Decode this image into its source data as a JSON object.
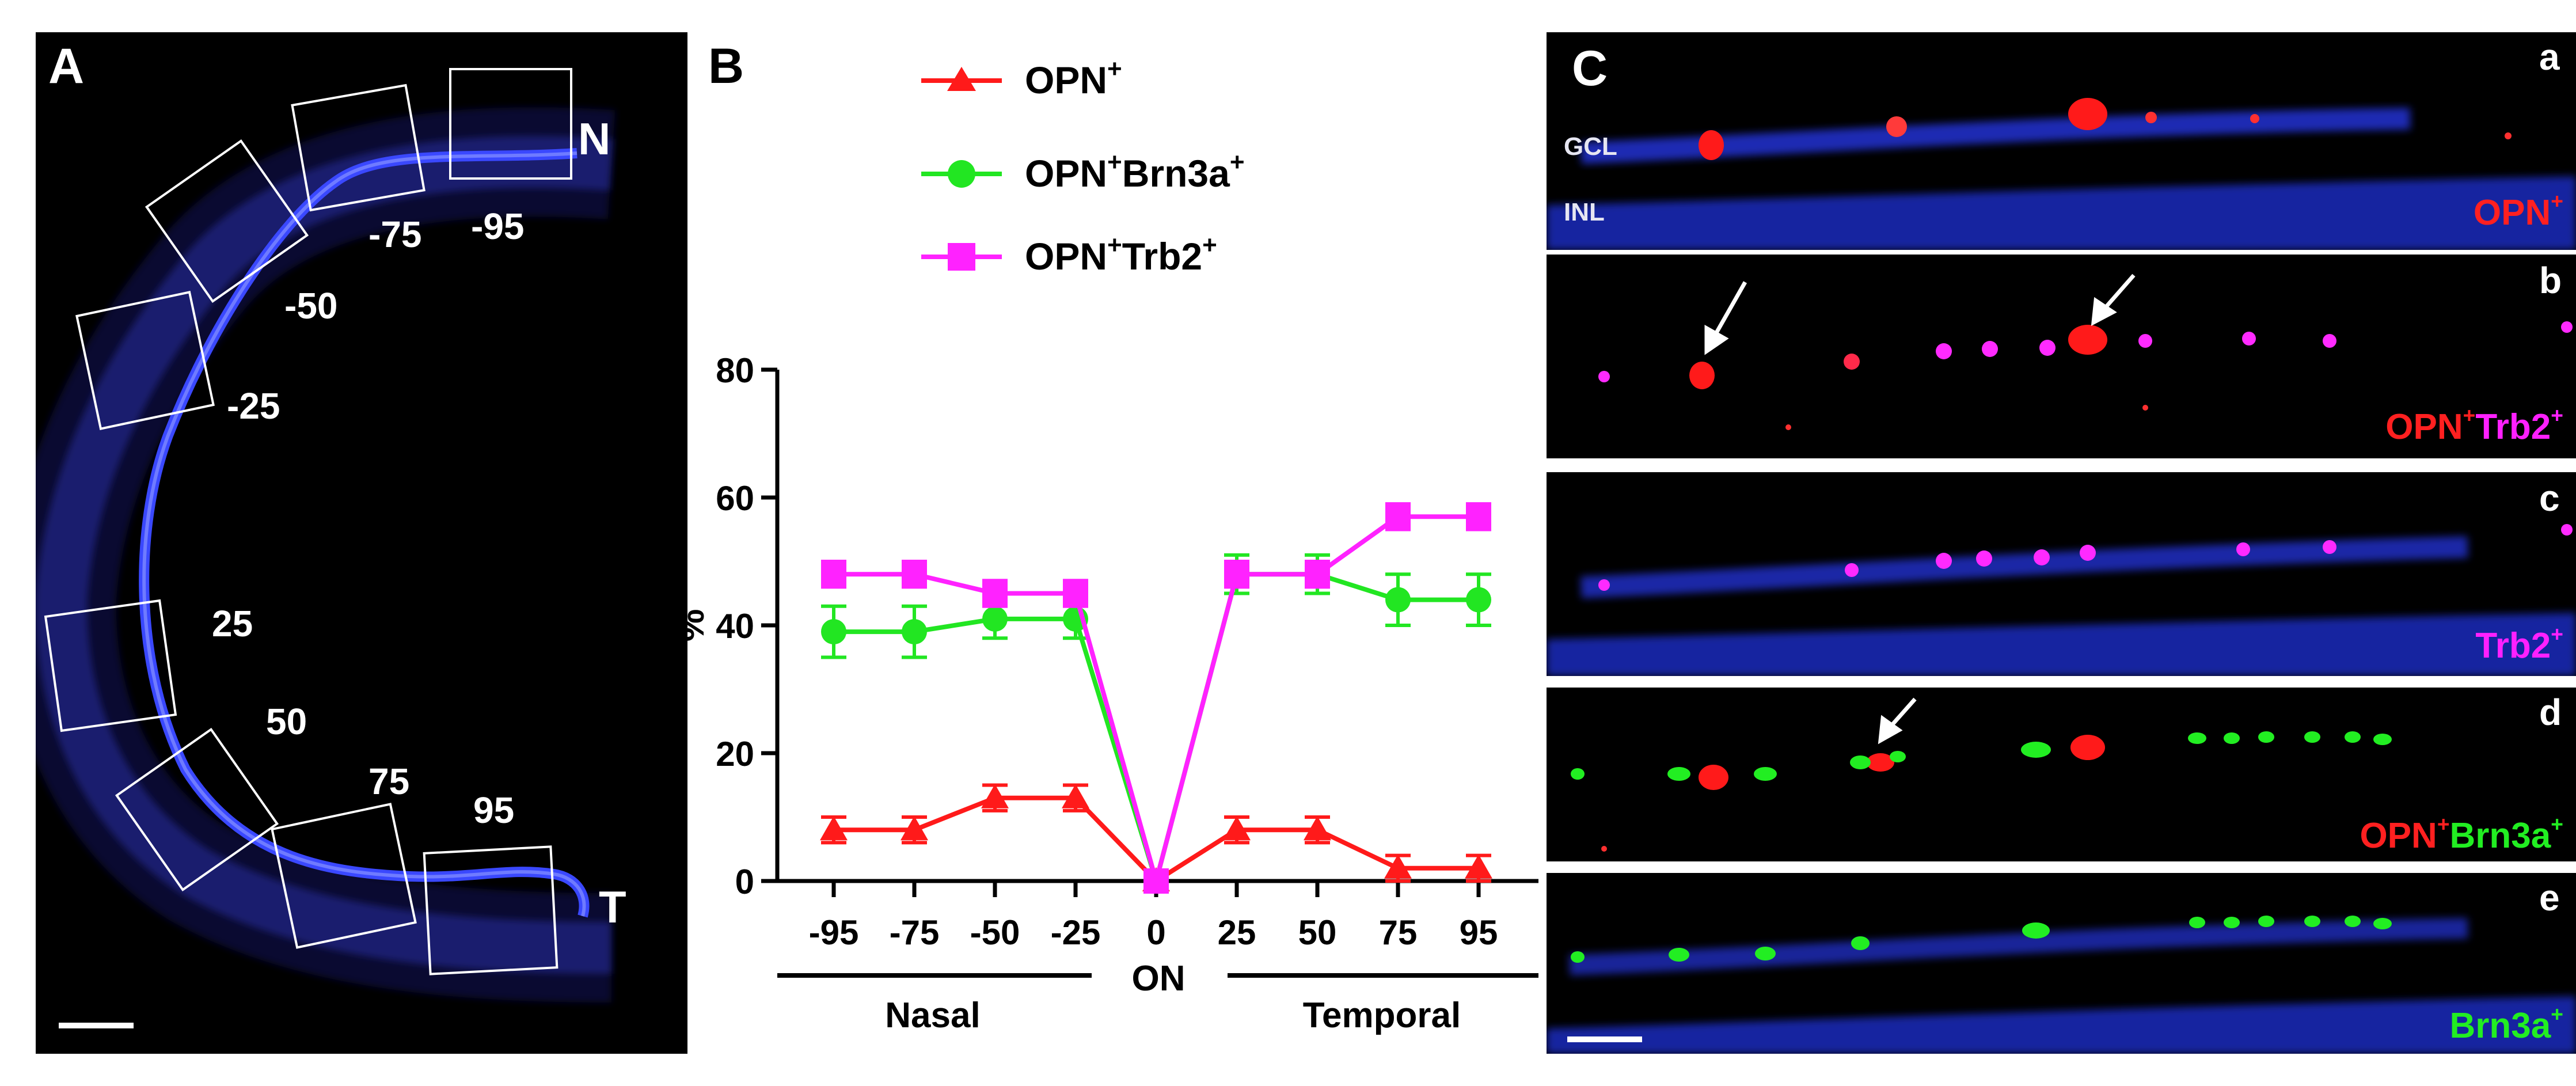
{
  "panel_a": {
    "letter": "A",
    "box_labels": [
      "-95",
      "-75",
      "-50",
      "-25",
      "25",
      "50",
      "75",
      "95"
    ],
    "nasal_end": "N",
    "temporal_end": "T"
  },
  "panel_b": {
    "letter": "B",
    "legend": [
      {
        "base": "OPN",
        "sup": "+",
        "rest": "",
        "rest_sup": ""
      },
      {
        "base": "OPN",
        "sup": "+",
        "rest": "Brn3a",
        "rest_sup": "+"
      },
      {
        "base": "OPN",
        "sup": "+",
        "rest": "Trb2",
        "rest_sup": "+"
      }
    ],
    "group_labels": [
      "Nasal",
      "ON",
      "Temporal"
    ]
  },
  "chart_data": {
    "type": "line",
    "categories": [
      "-95",
      "-75",
      "-50",
      "-25",
      "0",
      "25",
      "50",
      "75",
      "95"
    ],
    "ylabel": "%",
    "xlabel": "",
    "ylim": [
      0,
      80
    ],
    "yticks": [
      "0",
      "20",
      "40",
      "60",
      "80"
    ],
    "series": [
      {
        "name": "OPN+",
        "color": "#ff1a1a",
        "marker": "triangle",
        "values": [
          8,
          8,
          13,
          13,
          0,
          8,
          8,
          2,
          2
        ],
        "errors": [
          2,
          2,
          2,
          2,
          0,
          2,
          2,
          2,
          2
        ]
      },
      {
        "name": "OPN+Brn3a+",
        "color": "#22e622",
        "marker": "circle",
        "values": [
          39,
          39,
          41,
          41,
          0,
          48,
          48,
          44,
          44
        ],
        "errors": [
          4,
          4,
          3,
          3,
          0,
          3,
          3,
          4,
          4
        ]
      },
      {
        "name": "OPN+Trb2+",
        "color": "#ff22ff",
        "marker": "square",
        "values": [
          48,
          48,
          45,
          45,
          0,
          48,
          48,
          57,
          57
        ],
        "errors": [
          2,
          2,
          2,
          2,
          0,
          2,
          2,
          2,
          2
        ]
      }
    ]
  },
  "panel_c": {
    "letter": "C",
    "layer_labels": [
      "GCL",
      "INL"
    ],
    "rows": [
      {
        "letter": "a",
        "tags": [
          {
            "text": "OPN",
            "sup": "+",
            "color": "#ff2020"
          }
        ]
      },
      {
        "letter": "b",
        "tags": [
          {
            "text": "OPN",
            "sup": "+",
            "color": "#ff2020"
          },
          {
            "text": "Trb2",
            "sup": "+",
            "color": "#ff20ff"
          }
        ]
      },
      {
        "letter": "c",
        "tags": [
          {
            "text": "Trb2",
            "sup": "+",
            "color": "#ff20ff"
          }
        ]
      },
      {
        "letter": "d",
        "tags": [
          {
            "text": "OPN",
            "sup": "+",
            "color": "#ff2020"
          },
          {
            "text": "Brn3a",
            "sup": "+",
            "color": "#22ee22"
          }
        ]
      },
      {
        "letter": "e",
        "tags": [
          {
            "text": "Brn3a",
            "sup": "+",
            "color": "#22ee22"
          }
        ]
      }
    ]
  }
}
